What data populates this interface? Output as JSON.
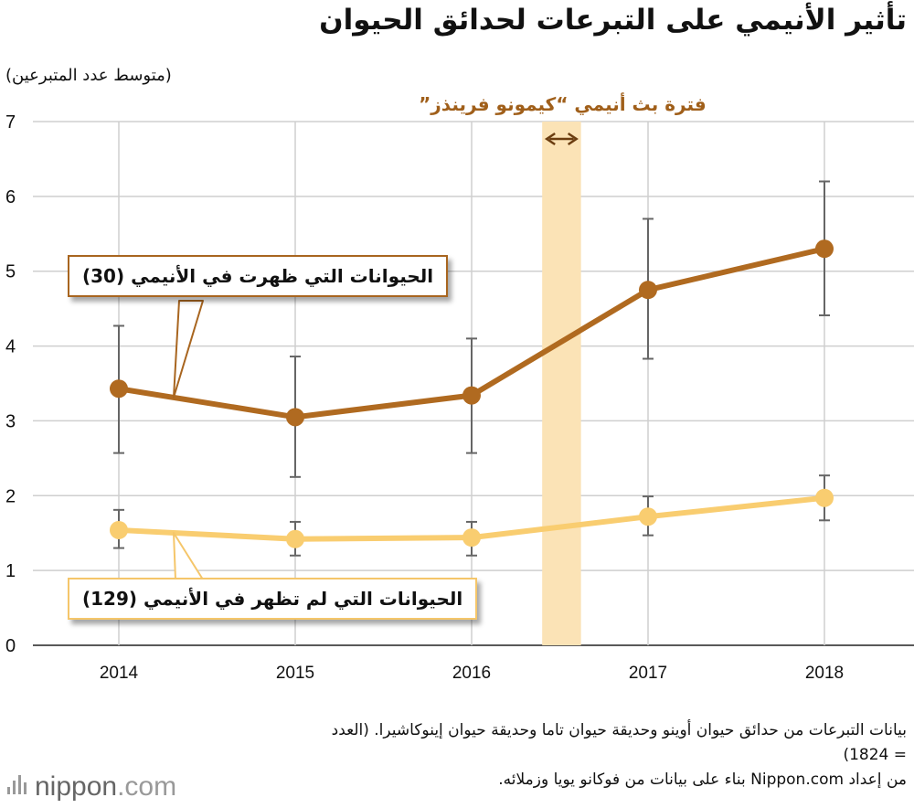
{
  "title": "تأثير الأنيمي على التبرعات لحدائق الحيوان",
  "chart_data": {
    "type": "line",
    "title": "تأثير الأنيمي على التبرعات لحدائق الحيوان",
    "ylabel": "(متوسط عدد المتبرعين)",
    "xlabel": "",
    "ylim": [
      0,
      7
    ],
    "yticks": [
      "0",
      "1",
      "2",
      "3",
      "4",
      "5",
      "6",
      "7"
    ],
    "categories": [
      "2014",
      "2015",
      "2016",
      "2017",
      "2018"
    ],
    "series": [
      {
        "name": "الحيوانات التي ظهرت في الأنيمي (30)",
        "color": "#b06a20",
        "values": [
          3.43,
          3.05,
          3.34,
          4.75,
          5.3
        ],
        "error_low": [
          2.57,
          2.25,
          2.57,
          3.83,
          4.41
        ],
        "error_high": [
          4.27,
          3.86,
          4.1,
          5.7,
          6.2
        ]
      },
      {
        "name": "الحيوانات التي لم تظهر في الأنيمي (129)",
        "color": "#f9cd70",
        "values": [
          1.54,
          1.42,
          1.44,
          1.72,
          1.97
        ],
        "error_low": [
          1.3,
          1.2,
          1.2,
          1.47,
          1.67
        ],
        "error_high": [
          1.81,
          1.65,
          1.65,
          1.99,
          2.27
        ]
      }
    ],
    "highlight_period": {
      "label": "فترة بث أنيمي “كيمونو فرينذز”",
      "start": 2016.4,
      "end": 2016.62,
      "color": "#fbe3b6"
    },
    "grid": true
  },
  "footer": {
    "line1": "بيانات التبرعات من حدائق حيوان أوينو وحديقة حيوان تاما وحديقة حيوان إينوكاشيرا. (العدد = 1824)",
    "line2": "من إعداد Nippon.com بناء على بيانات من فوكانو يويا وزملائه."
  },
  "logo": {
    "text_dark": "nippon",
    "text_light": ".com"
  }
}
